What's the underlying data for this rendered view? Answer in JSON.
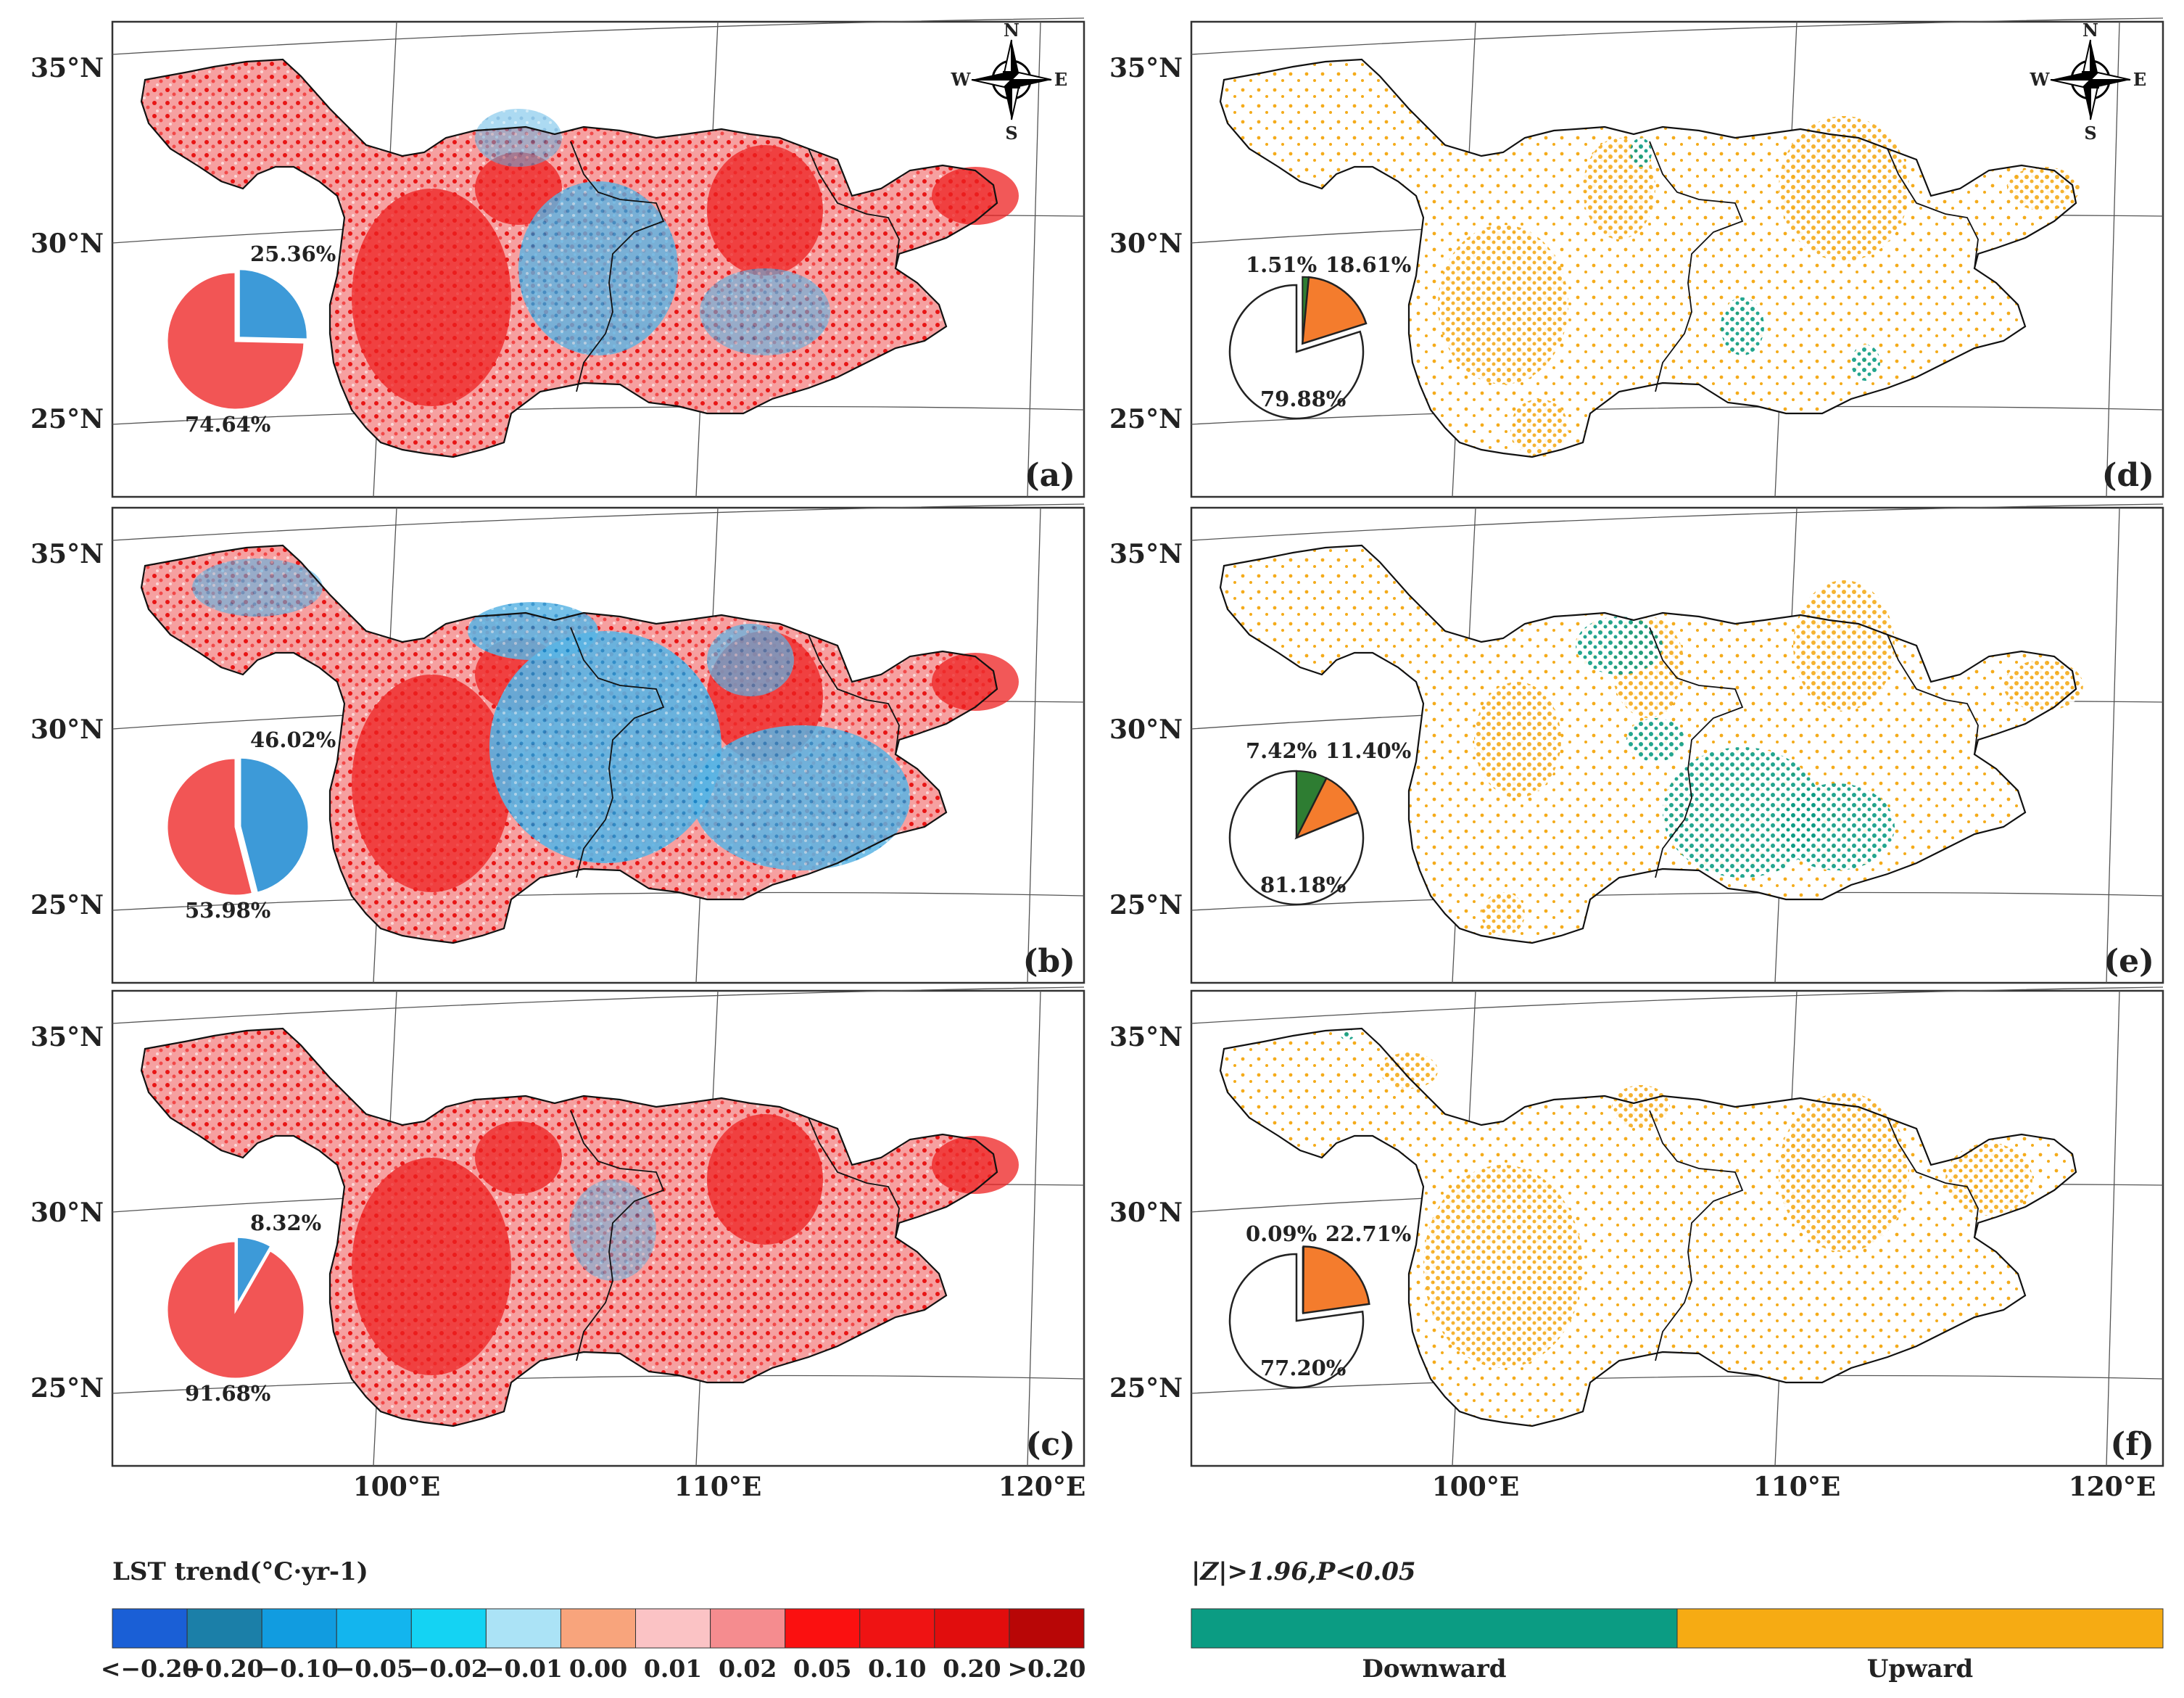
{
  "figure": {
    "lat_labels": [
      "35°N",
      "30°N",
      "25°N"
    ],
    "lon_labels": [
      "100°E",
      "110°E",
      "120°E"
    ],
    "compass": {
      "n": "N",
      "s": "S",
      "e": "E",
      "w": "W"
    },
    "colors": {
      "warm": "#f25555",
      "cool": "#3d9ad8",
      "upward": "#f6ab13",
      "downward": "#0b9c83",
      "pie_up": "#f47c2d",
      "pie_down": "#2e7d32"
    }
  },
  "panels": {
    "a": {
      "letter": "(a)",
      "pie": {
        "cooling_pct": 25.36,
        "warming_pct": 74.64,
        "cooling_label": "25.36%",
        "warming_label": "74.64%"
      }
    },
    "b": {
      "letter": "(b)",
      "pie": {
        "cooling_pct": 46.02,
        "warming_pct": 53.98,
        "cooling_label": "46.02%",
        "warming_label": "53.98%"
      }
    },
    "c": {
      "letter": "(c)",
      "pie": {
        "cooling_pct": 8.32,
        "warming_pct": 91.68,
        "cooling_label": "8.32%",
        "warming_label": "91.68%"
      }
    },
    "d": {
      "letter": "(d)",
      "pie": {
        "downward_pct": 1.51,
        "upward_pct": 18.61,
        "none_pct": 79.88,
        "downward_label": "1.51%",
        "upward_label": "18.61%",
        "none_label": "79.88%"
      }
    },
    "e": {
      "letter": "(e)",
      "pie": {
        "downward_pct": 7.42,
        "upward_pct": 11.4,
        "none_pct": 81.18,
        "downward_label": "7.42%",
        "upward_label": "11.40%",
        "none_label": "81.18%"
      }
    },
    "f": {
      "letter": "(f)",
      "pie": {
        "downward_pct": 0.09,
        "upward_pct": 22.71,
        "none_pct": 77.2,
        "downward_label": "0.09%",
        "upward_label": "22.71%",
        "none_label": "77.20%"
      }
    }
  },
  "legend_trend": {
    "title": "LST trend(°C·yr-1)",
    "colors": [
      "#1a5fd6",
      "#1b7fa8",
      "#119ce0",
      "#13b5ee",
      "#14d3f3",
      "#abe3f6",
      "#f8a47c",
      "#fbc3c5",
      "#f58c8f",
      "#fb1010",
      "#ef1313",
      "#e10d0d",
      "#b80606"
    ],
    "ticks": [
      "<−0.20",
      "−0.20",
      "−0.10",
      "−0.05",
      "−0.02",
      "−0.01",
      "0.00",
      "0.01",
      "0.02",
      "0.05",
      "0.10",
      "0.20",
      ">0.20"
    ]
  },
  "legend_z": {
    "title": "|Z|>1.96,P<0.05",
    "downward_label": "Downward",
    "upward_label": "Upward"
  }
}
